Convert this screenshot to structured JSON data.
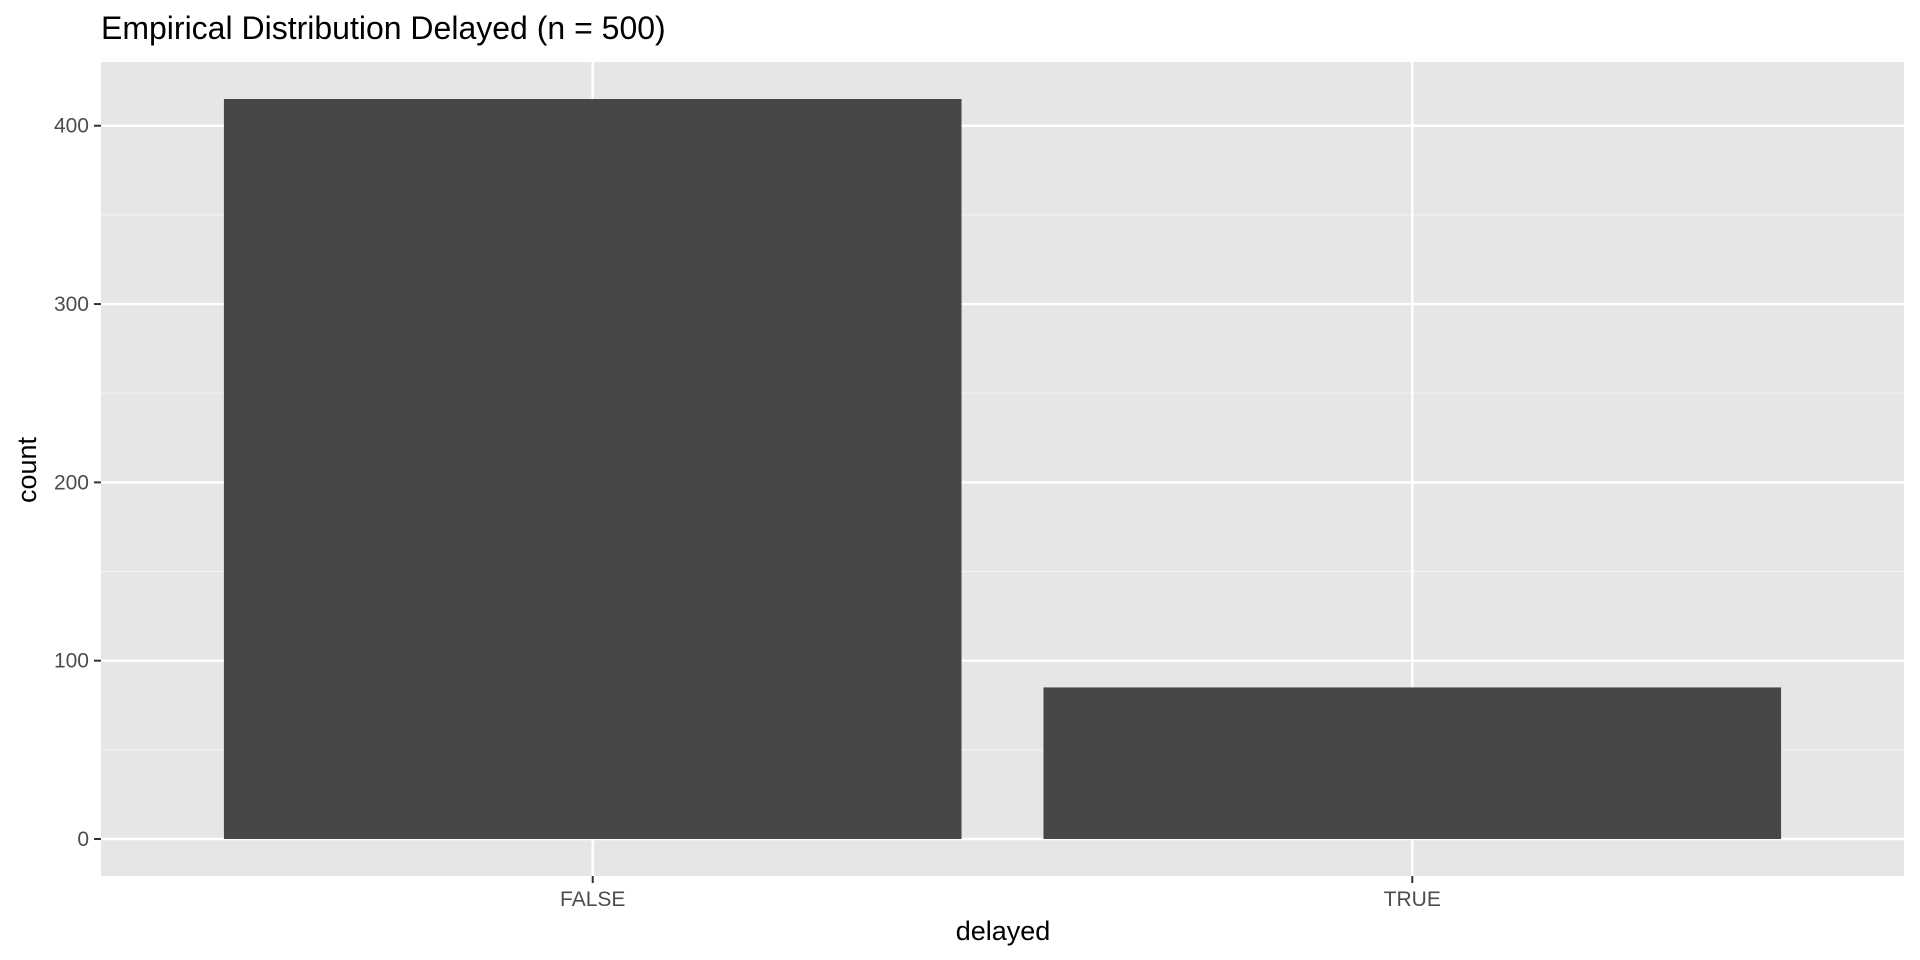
{
  "chart_data": {
    "type": "bar",
    "title": "Empirical Distribution Delayed (n = 500)",
    "xlabel": "delayed",
    "ylabel": "count",
    "categories": [
      "FALSE",
      "TRUE"
    ],
    "values": [
      415,
      85
    ],
    "ylim": [
      -20.75,
      435.75
    ],
    "yticks": [
      0,
      100,
      200,
      300,
      400
    ],
    "ytick_labels": [
      "0",
      "100",
      "200",
      "300",
      "400"
    ],
    "grid": true,
    "legend": "none",
    "colors": {
      "panel_background": "#e6e6e6",
      "grid_major": "#ffffff",
      "grid_minor": "#f2f2f2",
      "bar_fill": "#474747",
      "tick_mark": "#333333",
      "tick_text": "#4d4d4d",
      "text": "#000000"
    }
  }
}
